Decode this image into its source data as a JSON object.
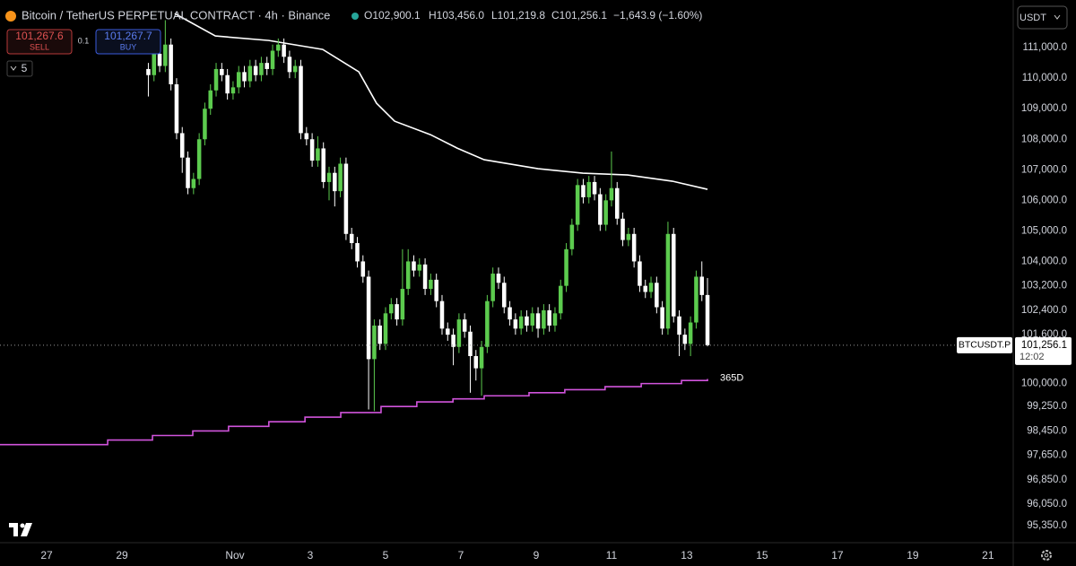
{
  "header": {
    "title": "Bitcoin / TetherUS PERPETUAL CONTRACT · 4h · Binance",
    "open": "O102,900.1",
    "high": "H103,456.0",
    "low": "L101,219.8",
    "close": "C101,256.1",
    "change": "−1,643.9 (−1.60%)",
    "sell_price": "101,267.6",
    "sell": "SELL",
    "quantity": "0.1",
    "buy_price": "101,267.7",
    "buy": "BUY",
    "indicators": "5",
    "currency": "USDT"
  },
  "chart_data": {
    "type": "candlestick",
    "candles": {
      "up_color": "#5ccb4e",
      "down_color": "#ffffff",
      "x": [
        2.7,
        2.85,
        3,
        3.15,
        3.3,
        3.45,
        3.6,
        3.75,
        3.9,
        4.05,
        4.2,
        4.35,
        4.5,
        4.65,
        4.8,
        4.95,
        5.1,
        5.25,
        5.4,
        5.55,
        5.7,
        5.85,
        6,
        6.15,
        6.3,
        6.45,
        6.6,
        6.75,
        6.9,
        7.05,
        7.2,
        7.35,
        7.5,
        7.65,
        7.8,
        7.95,
        8.1,
        8.25,
        8.4,
        8.55,
        8.7,
        8.85,
        9,
        9.15,
        9.3,
        9.45,
        9.6,
        9.75,
        9.9,
        10.05,
        10.2,
        10.35,
        10.5,
        10.65,
        10.8,
        10.95,
        11.1,
        11.25,
        11.4,
        11.55,
        11.7,
        11.85,
        12,
        12.15,
        12.3,
        12.45,
        12.6,
        12.75,
        12.9,
        13.05,
        13.2,
        13.35,
        13.5,
        13.65,
        13.8,
        13.95,
        14.1,
        14.25,
        14.4,
        14.55,
        14.7,
        14.85,
        15,
        15.15,
        15.3,
        15.45,
        15.6,
        15.75,
        15.9,
        16.05,
        16.2,
        16.35,
        16.5,
        16.65,
        16.8,
        16.95,
        17.1,
        17.25,
        17.4,
        17.55
      ],
      "open": [
        110300,
        110100,
        110800,
        110400,
        111100,
        109800,
        108200,
        107400,
        106400,
        106700,
        108000,
        109000,
        109600,
        110300,
        110100,
        109500,
        109700,
        110200,
        109900,
        110400,
        110100,
        110500,
        110300,
        110900,
        111100,
        110700,
        110200,
        110400,
        108200,
        108000,
        107300,
        107700,
        106600,
        106900,
        106300,
        107200,
        104900,
        104600,
        104000,
        103500,
        100800,
        101900,
        101300,
        102300,
        102600,
        102100,
        103100,
        104000,
        103700,
        103900,
        103100,
        103400,
        102700,
        101800,
        101600,
        101200,
        102100,
        101700,
        100900,
        100500,
        101200,
        102700,
        103600,
        103300,
        102500,
        102100,
        101800,
        102200,
        101900,
        102300,
        101800,
        102400,
        101900,
        102300,
        103200,
        104400,
        105200,
        106500,
        106100,
        106600,
        106200,
        105200,
        106000,
        106400,
        105400,
        104700,
        104900,
        104000,
        103200,
        103000,
        103300,
        102500,
        101800,
        104900,
        102200,
        101600,
        101300,
        102000,
        103500,
        102900.1
      ],
      "high": [
        110500,
        111000,
        111000,
        111900,
        111300,
        110000,
        108400,
        107600,
        106900,
        108200,
        109200,
        109800,
        110500,
        110500,
        110300,
        109900,
        110400,
        110400,
        110600,
        110600,
        110700,
        110700,
        111100,
        111300,
        111300,
        110900,
        110600,
        110600,
        108400,
        108200,
        108100,
        107900,
        107100,
        107100,
        107400,
        107400,
        105100,
        104800,
        104200,
        103700,
        102100,
        102100,
        102500,
        102800,
        102800,
        104400,
        104400,
        104200,
        104100,
        104100,
        103600,
        103600,
        102900,
        102000,
        101800,
        102300,
        102300,
        101900,
        101100,
        101400,
        102900,
        103800,
        103800,
        103500,
        102700,
        102300,
        102400,
        102400,
        102500,
        102500,
        102600,
        102600,
        102500,
        103400,
        104600,
        105400,
        106700,
        106700,
        106800,
        106800,
        106400,
        106200,
        107600,
        106600,
        105600,
        105100,
        105100,
        104200,
        103400,
        103500,
        103500,
        102700,
        105300,
        105100,
        102400,
        101800,
        102200,
        103700,
        104000,
        103456
      ],
      "low": [
        109400,
        109900,
        110200,
        110200,
        109600,
        108000,
        106900,
        106200,
        106200,
        106500,
        107800,
        108800,
        109400,
        109900,
        109300,
        109300,
        109500,
        109700,
        109700,
        109900,
        109900,
        110100,
        110100,
        110700,
        110500,
        110000,
        110000,
        108000,
        107800,
        107100,
        107100,
        106400,
        106000,
        105800,
        106100,
        104700,
        104400,
        103800,
        103300,
        99150,
        99100,
        101100,
        101100,
        102100,
        101900,
        101900,
        102900,
        103500,
        103500,
        102900,
        102900,
        102500,
        101600,
        101400,
        100600,
        101000,
        101500,
        99700,
        100100,
        99600,
        101000,
        102500,
        103100,
        102300,
        101900,
        101600,
        101600,
        101700,
        101700,
        101500,
        101600,
        101700,
        101700,
        102100,
        103000,
        104200,
        105000,
        105900,
        105900,
        106000,
        105000,
        105000,
        105800,
        105200,
        104500,
        104500,
        103800,
        103000,
        102800,
        102800,
        102300,
        101600,
        101600,
        102000,
        100900,
        101100,
        100900,
        101800,
        102700,
        101219.8
      ],
      "close": [
        110100,
        110800,
        110400,
        111100,
        109800,
        108200,
        107400,
        106400,
        106700,
        108000,
        109000,
        109600,
        110300,
        110100,
        109500,
        109700,
        110200,
        109900,
        110400,
        110100,
        110500,
        110300,
        110900,
        111100,
        110700,
        110200,
        110400,
        108200,
        108000,
        107300,
        107700,
        106600,
        106900,
        106300,
        107200,
        104900,
        104600,
        104000,
        103500,
        100800,
        101900,
        101300,
        102300,
        102600,
        102100,
        103100,
        104000,
        103700,
        103900,
        103100,
        103400,
        102700,
        101800,
        101600,
        101200,
        102100,
        101700,
        100900,
        100500,
        101200,
        102700,
        103600,
        103300,
        102500,
        102100,
        101800,
        102200,
        101900,
        102300,
        101800,
        102400,
        101900,
        102300,
        103200,
        104400,
        105200,
        106500,
        106100,
        106600,
        106200,
        105200,
        106000,
        106400,
        105400,
        104700,
        104900,
        104000,
        103200,
        103000,
        103300,
        102500,
        101800,
        104900,
        102200,
        101600,
        101300,
        102000,
        103500,
        102900.1,
        101256.1
      ]
    },
    "lines": [
      {
        "name": "365D",
        "color": "#d154dc",
        "step": true,
        "x": [
          -1.24,
          1.62,
          2.81,
          3.88,
          4.83,
          5.9,
          6.86,
          7.81,
          8.88,
          9.83,
          10.79,
          11.62,
          12.81,
          13.76,
          14.83,
          15.79,
          16.86,
          17.55
        ],
        "values": [
          98000,
          98150,
          98300,
          98450,
          98600,
          98750,
          98900,
          99050,
          99250,
          99400,
          99500,
          99600,
          99700,
          99800,
          99900,
          100000,
          100100,
          100150
        ]
      },
      {
        "color": "#ffffff",
        "step": false,
        "x": [
          3.4,
          4.48,
          5.9,
          7.33,
          8.29,
          8.76,
          9.24,
          10.19,
          10.9,
          11.62,
          13.05,
          14.24,
          15.43,
          16.62,
          17.55
        ],
        "values": [
          112116,
          111382,
          111235,
          110941,
          110207,
          109180,
          108592,
          108152,
          107711,
          107330,
          107036,
          106890,
          106831,
          106626,
          106361
        ]
      }
    ],
    "last_price": {
      "symbol": "BTCUSDT.P",
      "value": 101256.1,
      "label": "101,256.1",
      "countdown": "12:02"
    },
    "xlim": [
      -1.24,
      25.67
    ],
    "xticks": [
      {
        "value": 0,
        "label": "27"
      },
      {
        "value": 2,
        "label": "29"
      },
      {
        "value": 5,
        "label": "Nov"
      },
      {
        "value": 7,
        "label": "3"
      },
      {
        "value": 9,
        "label": "5"
      },
      {
        "value": 11,
        "label": "7"
      },
      {
        "value": 13,
        "label": "9"
      },
      {
        "value": 15,
        "label": "11"
      },
      {
        "value": 17,
        "label": "13"
      },
      {
        "value": 19,
        "label": "15"
      },
      {
        "value": 21,
        "label": "17"
      },
      {
        "value": 23,
        "label": "19"
      },
      {
        "value": 25,
        "label": "21"
      }
    ],
    "ylim": [
      94790,
      112560
    ],
    "yticks": [
      {
        "value": 111000,
        "label": "111,000.0"
      },
      {
        "value": 110000,
        "label": "110,000.0"
      },
      {
        "value": 109000,
        "label": "109,000.0"
      },
      {
        "value": 108000,
        "label": "108,000.0"
      },
      {
        "value": 107000,
        "label": "107,000.0"
      },
      {
        "value": 106000,
        "label": "106,000.0"
      },
      {
        "value": 105000,
        "label": "105,000.0"
      },
      {
        "value": 104000,
        "label": "104,000.0"
      },
      {
        "value": 103200,
        "label": "103,200.0"
      },
      {
        "value": 102400,
        "label": "102,400.0"
      },
      {
        "value": 101600,
        "label": "101,600.0"
      },
      {
        "value": 100000,
        "label": "100,000.0"
      },
      {
        "value": 99250,
        "label": "99,250.0"
      },
      {
        "value": 98450,
        "label": "98,450.0"
      },
      {
        "value": 97650,
        "label": "97,650.0"
      },
      {
        "value": 96850,
        "label": "96,850.0"
      },
      {
        "value": 96050,
        "label": "96,050.0"
      },
      {
        "value": 95350,
        "label": "95,350.0"
      }
    ],
    "grid": false
  }
}
